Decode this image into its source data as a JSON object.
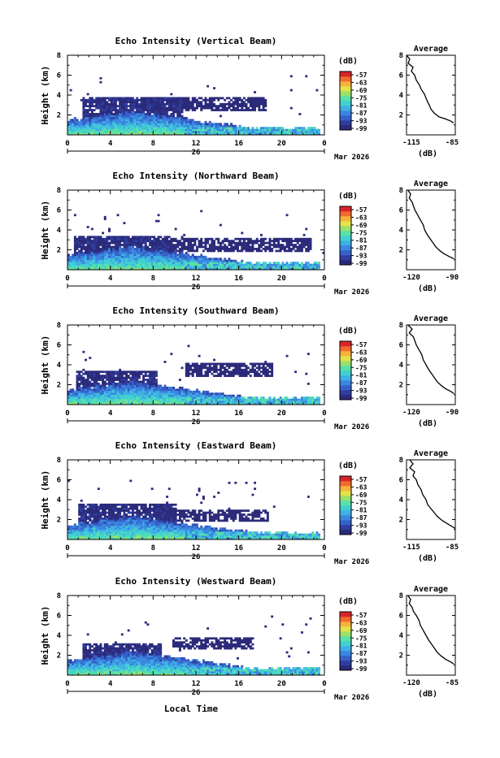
{
  "x_axis_label": "Local Time",
  "date_label": "Mar 2026",
  "day_label": "26",
  "cbar_unit": "(dB)",
  "profile_title": "Average",
  "profile_xlabel": "(dB)",
  "colorscale": [
    "#2b2a7a",
    "#2f3d9e",
    "#3561c8",
    "#3a86e0",
    "#3fb0e6",
    "#40d0d0",
    "#58e0a8",
    "#9be06b",
    "#e5e24a",
    "#f7b23d",
    "#f26a2e",
    "#d9252a"
  ],
  "panels": [
    {
      "title": "Echo Intensity (Vertical Beam)",
      "ylabel": "Height (km)",
      "x_ticks": [
        "0",
        "4",
        "8",
        "12",
        "16",
        "20",
        "0"
      ],
      "y_ticks": [
        "2",
        "4",
        "6",
        "8"
      ],
      "cbar_ticks": [
        "-57",
        "-63",
        "-69",
        "-75",
        "-81",
        "-87",
        "-93",
        "-99"
      ],
      "profile": {
        "x_ticks": [
          "-115",
          "-85"
        ],
        "xlim": [
          -115,
          -85
        ],
        "y_ticks": [
          "2",
          "4",
          "6",
          "8"
        ],
        "points": [
          [
            -115,
            8.0
          ],
          [
            -113,
            7.6
          ],
          [
            -114,
            7.2
          ],
          [
            -111,
            6.8
          ],
          [
            -112,
            6.4
          ],
          [
            -110,
            6.0
          ],
          [
            -109,
            5.5
          ],
          [
            -107,
            5.0
          ],
          [
            -106,
            4.6
          ],
          [
            -104,
            4.1
          ],
          [
            -103,
            3.7
          ],
          [
            -102,
            3.3
          ],
          [
            -101,
            3.0
          ],
          [
            -100,
            2.6
          ],
          [
            -98,
            2.2
          ],
          [
            -95,
            1.8
          ],
          [
            -91,
            1.6
          ],
          [
            -88,
            1.4
          ],
          [
            -86,
            1.2
          ]
        ]
      }
    },
    {
      "title": "Echo Intensity (Northward Beam)",
      "ylabel": "Height (km)",
      "x_ticks": [
        "0",
        "4",
        "8",
        "12",
        "16",
        "20",
        "0"
      ],
      "y_ticks": [
        "2",
        "4",
        "6",
        "8"
      ],
      "cbar_ticks": [
        "-57",
        "-63",
        "-69",
        "-75",
        "-81",
        "-87",
        "-93",
        "-99"
      ],
      "profile": {
        "x_ticks": [
          "-120",
          "-90"
        ],
        "xlim": [
          -120,
          -85
        ],
        "y_ticks": [
          "2",
          "4",
          "6",
          "8"
        ],
        "points": [
          [
            -119,
            8.0
          ],
          [
            -117,
            7.6
          ],
          [
            -118,
            7.2
          ],
          [
            -116,
            6.8
          ],
          [
            -115,
            6.4
          ],
          [
            -114,
            6.0
          ],
          [
            -112,
            5.5
          ],
          [
            -110,
            5.0
          ],
          [
            -108,
            4.5
          ],
          [
            -107,
            4.0
          ],
          [
            -105,
            3.5
          ],
          [
            -103,
            3.1
          ],
          [
            -101,
            2.7
          ],
          [
            -99,
            2.3
          ],
          [
            -96,
            1.9
          ],
          [
            -93,
            1.6
          ],
          [
            -89,
            1.3
          ],
          [
            -86,
            1.1
          ]
        ]
      }
    },
    {
      "title": "Echo Intensity (Southward Beam)",
      "ylabel": "Height (km)",
      "x_ticks": [
        "0",
        "4",
        "8",
        "12",
        "16",
        "20",
        "0"
      ],
      "y_ticks": [
        "2",
        "4",
        "6",
        "8"
      ],
      "cbar_ticks": [
        "-57",
        "-63",
        "-69",
        "-75",
        "-81",
        "-87",
        "-93",
        "-99"
      ],
      "profile": {
        "x_ticks": [
          "-120",
          "-90"
        ],
        "xlim": [
          -120,
          -85
        ],
        "y_ticks": [
          "2",
          "4",
          "6",
          "8"
        ],
        "points": [
          [
            -119,
            8.0
          ],
          [
            -116,
            7.6
          ],
          [
            -118,
            7.2
          ],
          [
            -115,
            6.8
          ],
          [
            -114,
            6.4
          ],
          [
            -113,
            6.0
          ],
          [
            -111,
            5.5
          ],
          [
            -109,
            5.0
          ],
          [
            -108,
            4.5
          ],
          [
            -106,
            4.0
          ],
          [
            -104,
            3.5
          ],
          [
            -102,
            3.1
          ],
          [
            -100,
            2.7
          ],
          [
            -98,
            2.3
          ],
          [
            -95,
            1.9
          ],
          [
            -92,
            1.6
          ],
          [
            -88,
            1.3
          ],
          [
            -86,
            1.1
          ]
        ]
      }
    },
    {
      "title": "Echo Intensity (Eastward Beam)",
      "ylabel": "Height (km)",
      "x_ticks": [
        "0",
        "4",
        "8",
        "12",
        "16",
        "20",
        "0"
      ],
      "y_ticks": [
        "2",
        "4",
        "6",
        "8"
      ],
      "cbar_ticks": [
        "-57",
        "-63",
        "-69",
        "-75",
        "-81",
        "-87",
        "-93",
        "-99"
      ],
      "profile": {
        "x_ticks": [
          "-115",
          "-85"
        ],
        "xlim": [
          -115,
          -85
        ],
        "y_ticks": [
          "2",
          "4",
          "6",
          "8"
        ],
        "points": [
          [
            -113,
            8.0
          ],
          [
            -111,
            7.6
          ],
          [
            -113,
            7.2
          ],
          [
            -110,
            6.8
          ],
          [
            -111,
            6.4
          ],
          [
            -109,
            6.0
          ],
          [
            -108,
            5.5
          ],
          [
            -106,
            5.0
          ],
          [
            -105,
            4.5
          ],
          [
            -103,
            4.0
          ],
          [
            -102,
            3.5
          ],
          [
            -100,
            3.1
          ],
          [
            -98,
            2.7
          ],
          [
            -96,
            2.3
          ],
          [
            -93,
            1.9
          ],
          [
            -90,
            1.6
          ],
          [
            -87,
            1.3
          ],
          [
            -85,
            1.1
          ]
        ]
      }
    },
    {
      "title": "Echo Intensity (Westward Beam)",
      "ylabel": "Height (km)",
      "x_ticks": [
        "0",
        "4",
        "8",
        "12",
        "16",
        "20",
        "0"
      ],
      "y_ticks": [
        "2",
        "4",
        "6",
        "8"
      ],
      "cbar_ticks": [
        "-57",
        "-63",
        "-69",
        "-75",
        "-81",
        "-87",
        "-93",
        "-99"
      ],
      "profile": {
        "x_ticks": [
          "-120",
          "-85"
        ],
        "xlim": [
          -120,
          -85
        ],
        "y_ticks": [
          "2",
          "4",
          "6",
          "8"
        ],
        "points": [
          [
            -119,
            8.0
          ],
          [
            -117,
            7.6
          ],
          [
            -118,
            7.2
          ],
          [
            -116,
            6.8
          ],
          [
            -115,
            6.4
          ],
          [
            -113,
            6.0
          ],
          [
            -111,
            5.5
          ],
          [
            -110,
            5.0
          ],
          [
            -108,
            4.5
          ],
          [
            -106,
            4.0
          ],
          [
            -104,
            3.5
          ],
          [
            -102,
            3.1
          ],
          [
            -100,
            2.7
          ],
          [
            -98,
            2.3
          ],
          [
            -95,
            1.9
          ],
          [
            -92,
            1.6
          ],
          [
            -88,
            1.3
          ],
          [
            -86,
            1.1
          ]
        ]
      }
    }
  ],
  "chart_data": [
    {
      "type": "heatmap",
      "title": "Echo Intensity (Vertical Beam)",
      "xlabel": "Local Time",
      "ylabel": "Height (km)",
      "xlim": [
        0,
        24
      ],
      "ylim": [
        0,
        8
      ],
      "colorbar_label": "(dB)",
      "colorbar_range": [
        -99,
        -57
      ]
    },
    {
      "type": "line",
      "title": "Average",
      "xlabel": "(dB)",
      "xlim": [
        -115,
        -85
      ],
      "ylim": [
        0,
        8
      ]
    },
    {
      "type": "heatmap",
      "title": "Echo Intensity (Northward Beam)",
      "xlabel": "Local Time",
      "ylabel": "Height (km)",
      "xlim": [
        0,
        24
      ],
      "ylim": [
        0,
        8
      ],
      "colorbar_label": "(dB)",
      "colorbar_range": [
        -99,
        -57
      ]
    },
    {
      "type": "line",
      "title": "Average",
      "xlabel": "(dB)",
      "xlim": [
        -120,
        -85
      ],
      "ylim": [
        0,
        8
      ]
    },
    {
      "type": "heatmap",
      "title": "Echo Intensity (Southward Beam)",
      "xlabel": "Local Time",
      "ylabel": "Height (km)",
      "xlim": [
        0,
        24
      ],
      "ylim": [
        0,
        8
      ],
      "colorbar_label": "(dB)",
      "colorbar_range": [
        -99,
        -57
      ]
    },
    {
      "type": "line",
      "title": "Average",
      "xlabel": "(dB)",
      "xlim": [
        -120,
        -85
      ],
      "ylim": [
        0,
        8
      ]
    },
    {
      "type": "heatmap",
      "title": "Echo Intensity (Eastward Beam)",
      "xlabel": "Local Time",
      "ylabel": "Height (km)",
      "xlim": [
        0,
        24
      ],
      "ylim": [
        0,
        8
      ],
      "colorbar_label": "(dB)",
      "colorbar_range": [
        -99,
        -57
      ]
    },
    {
      "type": "line",
      "title": "Average",
      "xlabel": "(dB)",
      "xlim": [
        -115,
        -85
      ],
      "ylim": [
        0,
        8
      ]
    },
    {
      "type": "heatmap",
      "title": "Echo Intensity (Westward Beam)",
      "xlabel": "Local Time",
      "ylabel": "Height (km)",
      "xlim": [
        0,
        24
      ],
      "ylim": [
        0,
        8
      ],
      "colorbar_label": "(dB)",
      "colorbar_range": [
        -99,
        -57
      ]
    },
    {
      "type": "line",
      "title": "Average",
      "xlabel": "(dB)",
      "xlim": [
        -120,
        -85
      ],
      "ylim": [
        0,
        8
      ]
    }
  ]
}
